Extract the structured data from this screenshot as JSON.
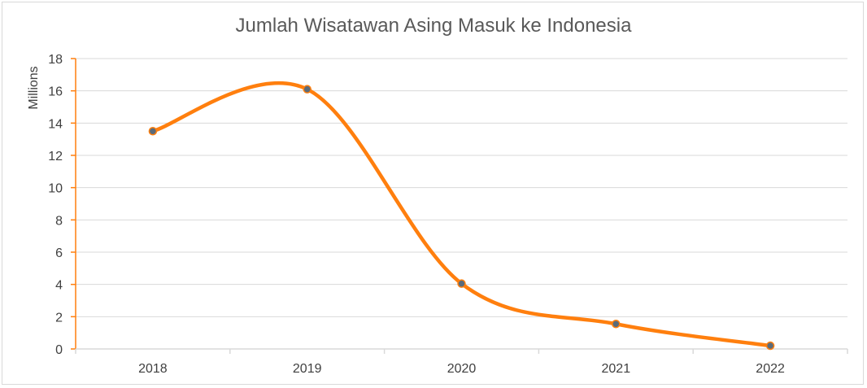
{
  "chart_data": {
    "type": "line",
    "title": "Jumlah Wisatawan Asing Masuk ke Indonesia",
    "ylabel": "Millions",
    "xlabel": "",
    "categories": [
      "2018",
      "2019",
      "2020",
      "2021",
      "2022"
    ],
    "series": [
      {
        "values": [
          13.5,
          16.1,
          4.05,
          1.55,
          0.2
        ]
      }
    ],
    "ylim": [
      0,
      18
    ],
    "yticks": [
      0,
      2,
      4,
      6,
      8,
      10,
      12,
      14,
      16,
      18
    ],
    "smooth": true,
    "grid": true,
    "legend": "none",
    "colors": {
      "line": "#ff7f0e",
      "marker_fill": "#5b6b7a",
      "marker_stroke": "#ff7f0e",
      "axis": "#ff7f0e",
      "grid": "#d9d9d9",
      "text": "#404040",
      "title": "#595959"
    }
  }
}
